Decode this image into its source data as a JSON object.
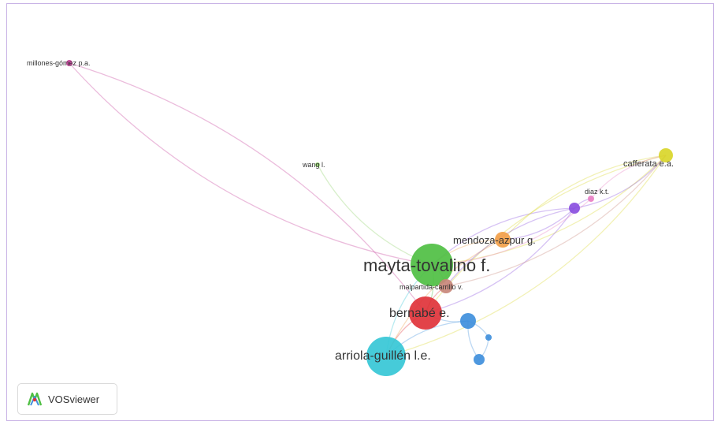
{
  "app": {
    "name": "VOSviewer"
  },
  "colors": {
    "green": "#4fbf43",
    "red": "#e0333a",
    "cyan": "#36c7d6",
    "blue": "#3f8fdc",
    "orange": "#f2a04a",
    "yellow": "#d9d62a",
    "purple": "#8a4fe0",
    "pink": "#e97fc4",
    "brown": "#c8877a",
    "magenta": "#c7409a",
    "lightgreen": "#8fd06a",
    "frame": "#c9b3e6"
  },
  "nodes": [
    {
      "id": "millones-gomez",
      "label": "millones-gómez p.a.",
      "color": "magenta"
    },
    {
      "id": "wang",
      "label": "wang l.",
      "color": "lightgreen"
    },
    {
      "id": "mayta-tovalino",
      "label": "mayta-tovalino f.",
      "color": "green"
    },
    {
      "id": "mendoza-azpur",
      "label": "mendoza-azpur g.",
      "color": "orange"
    },
    {
      "id": "malpartida-carrillo",
      "label": "malpartida-carrillo v.",
      "color": "brown"
    },
    {
      "id": "bernabe",
      "label": "bernabé e.",
      "color": "red"
    },
    {
      "id": "arriola-guillen",
      "label": "arriola-guillén l.e.",
      "color": "cyan"
    },
    {
      "id": "cafferata",
      "label": "cafferata e.a.",
      "color": "yellow"
    },
    {
      "id": "diaz",
      "label": "diaz k.t.",
      "color": "pink"
    },
    {
      "id": "purple-node",
      "label": "",
      "color": "purple"
    },
    {
      "id": "blue-1",
      "label": "",
      "color": "blue"
    },
    {
      "id": "blue-2",
      "label": "",
      "color": "blue"
    },
    {
      "id": "blue-3",
      "label": "",
      "color": "blue"
    }
  ],
  "links": [
    [
      "millones-gomez",
      "mayta-tovalino",
      "magenta"
    ],
    [
      "millones-gomez",
      "bernabe",
      "magenta"
    ],
    [
      "wang",
      "mayta-tovalino",
      "lightgreen"
    ],
    [
      "mayta-tovalino",
      "mendoza-azpur",
      "orange"
    ],
    [
      "mayta-tovalino",
      "cafferata",
      "yellow"
    ],
    [
      "mayta-tovalino",
      "purple-node",
      "purple"
    ],
    [
      "mayta-tovalino",
      "diaz",
      "pink"
    ],
    [
      "mayta-tovalino",
      "bernabe",
      "green"
    ],
    [
      "mayta-tovalino",
      "arriola-guillen",
      "cyan"
    ],
    [
      "mayta-tovalino",
      "malpartida-carrillo",
      "brown"
    ],
    [
      "bernabe",
      "arriola-guillen",
      "red"
    ],
    [
      "bernabe",
      "malpartida-carrillo",
      "red"
    ],
    [
      "bernabe",
      "blue-1",
      "blue"
    ],
    [
      "bernabe",
      "cafferata",
      "yellow"
    ],
    [
      "bernabe",
      "purple-node",
      "purple"
    ],
    [
      "arriola-guillen",
      "blue-1",
      "blue"
    ],
    [
      "arriola-guillen",
      "cafferata",
      "yellow"
    ],
    [
      "arriola-guillen",
      "mendoza-azpur",
      "orange"
    ],
    [
      "blue-1",
      "blue-2",
      "blue"
    ],
    [
      "blue-1",
      "blue-3",
      "blue"
    ],
    [
      "blue-2",
      "blue-3",
      "blue"
    ],
    [
      "mendoza-azpur",
      "cafferata",
      "yellow"
    ],
    [
      "mendoza-azpur",
      "purple-node",
      "purple"
    ],
    [
      "purple-node",
      "diaz",
      "purple"
    ],
    [
      "purple-node",
      "cafferata",
      "purple"
    ],
    [
      "diaz",
      "cafferata",
      "pink"
    ],
    [
      "malpartida-carrillo",
      "cafferata",
      "brown"
    ],
    [
      "malpartida-carrillo",
      "purple-node",
      "purple"
    ]
  ]
}
